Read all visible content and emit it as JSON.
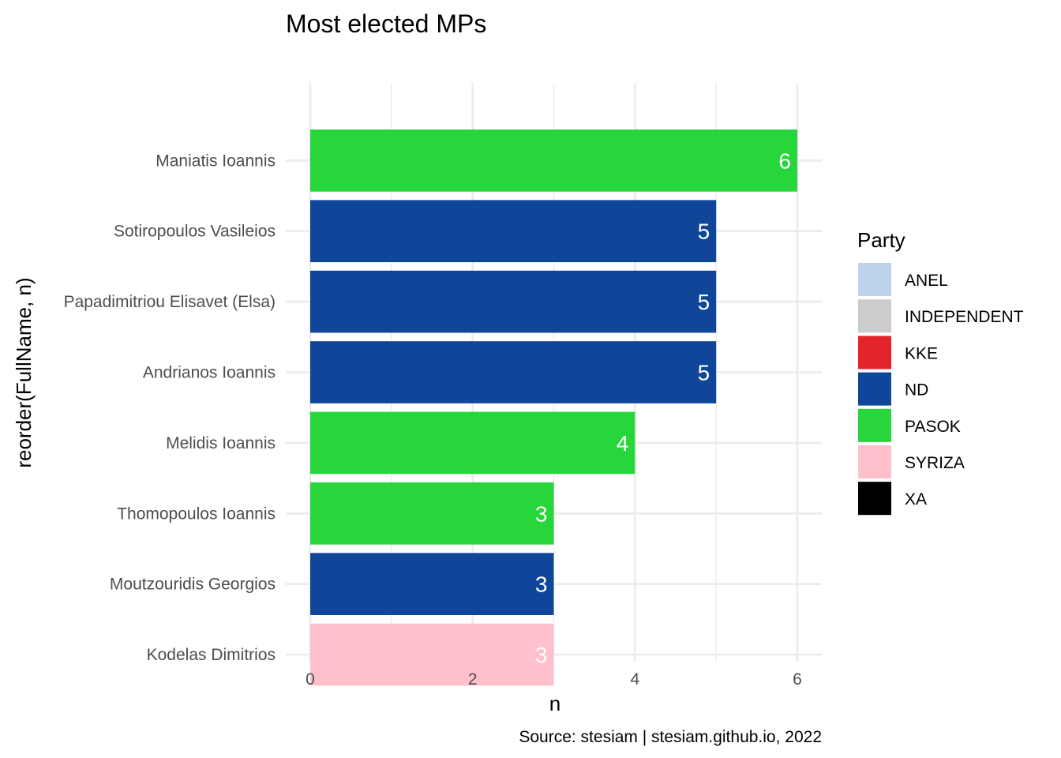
{
  "chart_data": {
    "type": "bar",
    "orientation": "horizontal",
    "title": "Most elected MPs",
    "xlabel": "n",
    "ylabel": "reorder(FullName, n)",
    "caption": "Source: stesiam | stesiam.github.io, 2022",
    "xlim": [
      0,
      6.3
    ],
    "x_ticks": [
      0,
      2,
      4,
      6
    ],
    "grid": true,
    "legend_title": "Party",
    "legend_position": "right",
    "categories": [
      "Maniatis Ioannis",
      "Sotiropoulos Vasileios",
      "Papadimitriou Elisavet (Elsa)",
      "Andrianos Ioannis",
      "Melidis Ioannis",
      "Thomopoulos Ioannis",
      "Moutzouridis Georgios",
      "Kodelas Dimitrios"
    ],
    "values": [
      6,
      5,
      5,
      5,
      4,
      3,
      3,
      3
    ],
    "party": [
      "PASOK",
      "ND",
      "ND",
      "ND",
      "PASOK",
      "PASOK",
      "ND",
      "SYRIZA"
    ],
    "legend": [
      {
        "name": "ANEL",
        "color": "#bdd3ea"
      },
      {
        "name": "INDEPENDENT",
        "color": "#cccccc"
      },
      {
        "name": "KKE",
        "color": "#e3242b"
      },
      {
        "name": "ND",
        "color": "#10469a"
      },
      {
        "name": "PASOK",
        "color": "#27d63b"
      },
      {
        "name": "SYRIZA",
        "color": "#ffc0cb"
      },
      {
        "name": "XA",
        "color": "#000000"
      }
    ]
  }
}
